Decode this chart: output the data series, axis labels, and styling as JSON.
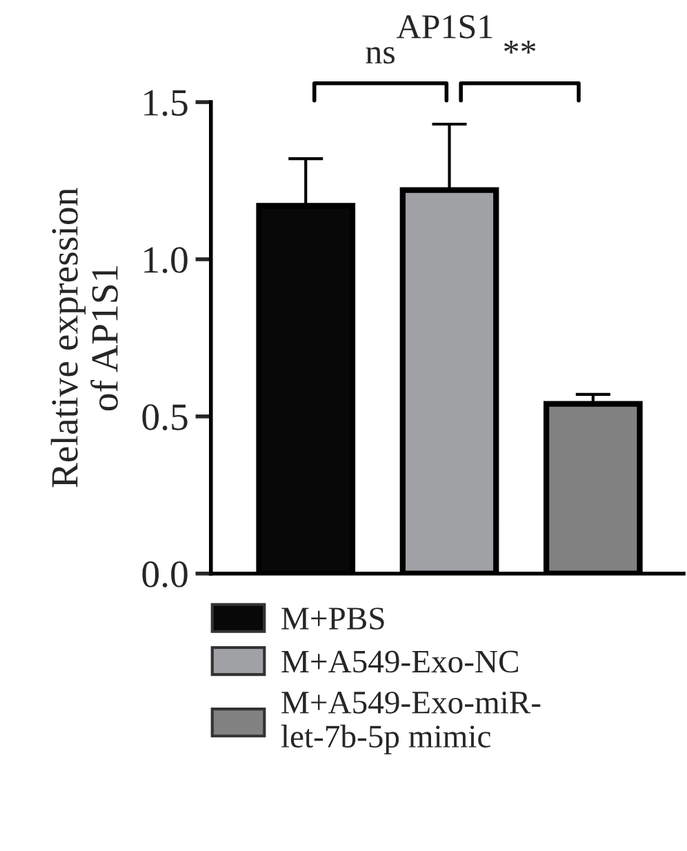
{
  "chart_data": {
    "type": "bar",
    "title": "AP1S1",
    "ylabel": "Relative expression\nof AP1S1",
    "categories": [
      null,
      null,
      null
    ],
    "series": [
      {
        "name": "M+PBS",
        "color": "#080808",
        "values": [
          1.17,
          null,
          null
        ],
        "errors": [
          0.15,
          null,
          null
        ]
      },
      {
        "name": "M+A549-Exo-NC",
        "color": "#a0a1a5",
        "values": [
          null,
          1.22,
          null
        ],
        "errors": [
          null,
          0.21,
          null
        ]
      },
      {
        "name": "M+A549-Exo-miR-\nlet-7b-5p mimic",
        "color": "#828282",
        "values": [
          null,
          null,
          0.54
        ],
        "errors": [
          null,
          null,
          0.03
        ]
      }
    ],
    "ylim": [
      0,
      1.5
    ],
    "yticks": [
      {
        "value": 0,
        "label": "0.0"
      },
      {
        "value": 0.5,
        "label": "0.5"
      },
      {
        "value": 1,
        "label": "1.0"
      },
      {
        "value": 1.5,
        "label": "1.5"
      }
    ],
    "annotations": [
      "ns",
      "**"
    ],
    "grid": false,
    "legend": "bottom"
  }
}
